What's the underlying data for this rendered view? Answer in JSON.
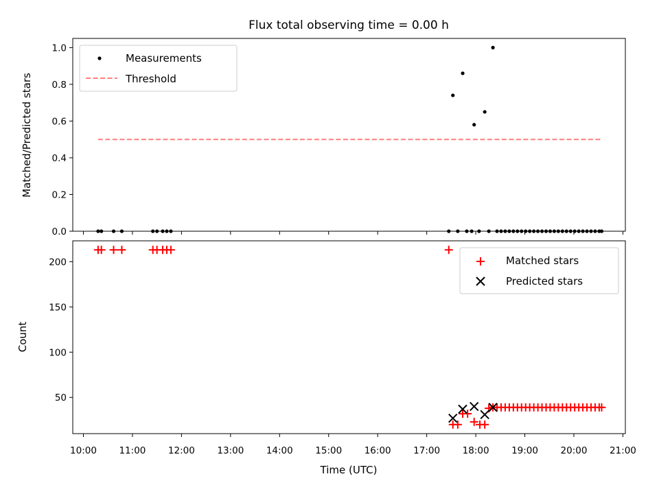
{
  "chart_data": {
    "title": "Flux total observing time = 0.00 h",
    "xlabel": "Time (UTC)",
    "x_ticks": [
      "10:00",
      "11:00",
      "12:00",
      "13:00",
      "14:00",
      "15:00",
      "16:00",
      "17:00",
      "18:00",
      "19:00",
      "20:00",
      "21:00"
    ],
    "xlim": [
      "09:47",
      "21:03"
    ],
    "panels": [
      {
        "type": "scatter",
        "ylabel": "Matched/Predicted stars",
        "ylim": [
          0,
          1.05
        ],
        "y_ticks": [
          0.0,
          0.2,
          0.4,
          0.6,
          0.8,
          1.0
        ],
        "y_tick_labels": [
          "0.0",
          "0.2",
          "0.4",
          "0.6",
          "0.8",
          "1.0"
        ],
        "legend": {
          "placement": "top-left",
          "entries": [
            "Measurements",
            "Threshold"
          ]
        },
        "series": [
          {
            "name": "Measurements",
            "color": "#000000",
            "marker": "dot",
            "points": [
              [
                "10:18",
                0
              ],
              [
                "10:22",
                0
              ],
              [
                "10:37",
                0
              ],
              [
                "10:47",
                0
              ],
              [
                "11:25",
                0
              ],
              [
                "11:30",
                0
              ],
              [
                "11:37",
                0
              ],
              [
                "11:42",
                0
              ],
              [
                "11:47",
                0
              ],
              [
                "17:27",
                0
              ],
              [
                "17:38",
                0
              ],
              [
                "17:32",
                0.74
              ],
              [
                "17:44",
                0.86
              ],
              [
                "17:58",
                0.58
              ],
              [
                "18:11",
                0.65
              ],
              [
                "18:21",
                1.0
              ],
              [
                "17:49",
                0
              ],
              [
                "17:55",
                0
              ],
              [
                "18:04",
                0
              ],
              [
                "18:16",
                0
              ],
              [
                "18:26",
                0
              ],
              [
                "18:31",
                0
              ],
              [
                "18:36",
                0
              ],
              [
                "18:41",
                0
              ],
              [
                "18:46",
                0
              ],
              [
                "18:51",
                0
              ],
              [
                "18:56",
                0
              ],
              [
                "19:01",
                0
              ],
              [
                "19:06",
                0
              ],
              [
                "19:11",
                0
              ],
              [
                "19:16",
                0
              ],
              [
                "19:21",
                0
              ],
              [
                "19:26",
                0
              ],
              [
                "19:31",
                0
              ],
              [
                "19:36",
                0
              ],
              [
                "19:41",
                0
              ],
              [
                "19:46",
                0
              ],
              [
                "19:51",
                0
              ],
              [
                "19:56",
                0
              ],
              [
                "20:01",
                0
              ],
              [
                "20:06",
                0
              ],
              [
                "20:11",
                0
              ],
              [
                "20:16",
                0
              ],
              [
                "20:21",
                0
              ],
              [
                "20:26",
                0
              ],
              [
                "20:31",
                0
              ],
              [
                "20:34",
                0
              ]
            ]
          },
          {
            "name": "Threshold",
            "color": "#ff7f7f",
            "style": "dashed",
            "points": [
              [
                "10:18",
                0.5
              ],
              [
                "20:34",
                0.5
              ]
            ]
          }
        ]
      },
      {
        "type": "scatter",
        "ylabel": "Count",
        "ylim": [
          10,
          223
        ],
        "y_ticks": [
          50,
          100,
          150,
          200
        ],
        "y_tick_labels": [
          "50",
          "100",
          "150",
          "200"
        ],
        "legend": {
          "placement": "top-right",
          "entries": [
            "Matched stars",
            "Predicted stars"
          ]
        },
        "series": [
          {
            "name": "Matched stars",
            "color": "#ff0000",
            "marker": "plus",
            "points": [
              [
                "10:18",
                213
              ],
              [
                "10:22",
                213
              ],
              [
                "10:37",
                213
              ],
              [
                "10:47",
                213
              ],
              [
                "11:25",
                213
              ],
              [
                "11:30",
                213
              ],
              [
                "11:37",
                213
              ],
              [
                "11:42",
                213
              ],
              [
                "11:47",
                213
              ],
              [
                "17:27",
                213
              ],
              [
                "17:32",
                20
              ],
              [
                "17:38",
                20
              ],
              [
                "17:44",
                32
              ],
              [
                "17:50",
                32
              ],
              [
                "17:58",
                23
              ],
              [
                "18:05",
                20
              ],
              [
                "18:11",
                20
              ],
              [
                "18:16",
                38
              ],
              [
                "18:21",
                39
              ],
              [
                "18:26",
                39
              ],
              [
                "18:31",
                39
              ],
              [
                "18:36",
                39
              ],
              [
                "18:41",
                39
              ],
              [
                "18:46",
                39
              ],
              [
                "18:51",
                39
              ],
              [
                "18:56",
                39
              ],
              [
                "19:01",
                39
              ],
              [
                "19:06",
                39
              ],
              [
                "19:11",
                39
              ],
              [
                "19:16",
                39
              ],
              [
                "19:21",
                39
              ],
              [
                "19:26",
                39
              ],
              [
                "19:31",
                39
              ],
              [
                "19:36",
                39
              ],
              [
                "19:41",
                39
              ],
              [
                "19:46",
                39
              ],
              [
                "19:51",
                39
              ],
              [
                "19:56",
                39
              ],
              [
                "20:01",
                39
              ],
              [
                "20:06",
                39
              ],
              [
                "20:11",
                39
              ],
              [
                "20:16",
                39
              ],
              [
                "20:21",
                39
              ],
              [
                "20:26",
                39
              ],
              [
                "20:31",
                39
              ],
              [
                "20:34",
                39
              ]
            ]
          },
          {
            "name": "Predicted stars",
            "color": "#000000",
            "marker": "x",
            "points": [
              [
                "17:32",
                27
              ],
              [
                "17:44",
                37
              ],
              [
                "17:58",
                40
              ],
              [
                "18:11",
                31
              ],
              [
                "18:21",
                39
              ]
            ]
          }
        ]
      }
    ]
  }
}
